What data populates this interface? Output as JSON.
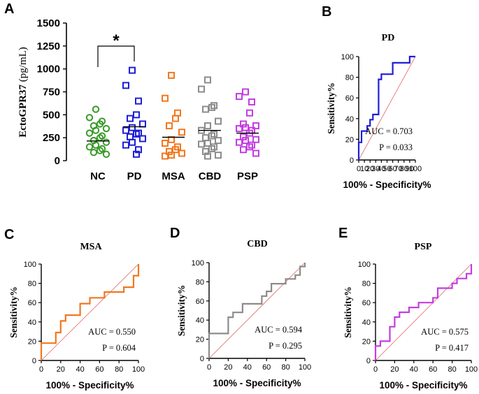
{
  "figure": {
    "panel_labels": [
      "A",
      "B",
      "C",
      "D",
      "E"
    ]
  },
  "chart_data": [
    {
      "panel": "A",
      "type": "scatter",
      "ylabel": "EctoGPR37 (pg/mL)",
      "ylim": [
        0,
        1500
      ],
      "yticks": [
        0,
        250,
        500,
        750,
        1000,
        1250,
        1500
      ],
      "categories": [
        "NC",
        "PD",
        "MSA",
        "CBD",
        "PSP"
      ],
      "colors": [
        "#3a9a2a",
        "#1f1fd6",
        "#f07820",
        "#8c8c8c",
        "#c23ee0"
      ],
      "markers": [
        "circle",
        "square",
        "square",
        "square",
        "square"
      ],
      "means": [
        215,
        370,
        255,
        330,
        300
      ],
      "significance": {
        "from": "NC",
        "to": "PD",
        "label": "*"
      },
      "series": [
        {
          "name": "NC",
          "values": [
            560,
            470,
            430,
            400,
            380,
            350,
            330,
            300,
            270,
            250,
            220,
            200,
            170,
            150,
            130,
            110,
            90,
            70
          ]
        },
        {
          "name": "PD",
          "values": [
            985,
            820,
            650,
            500,
            460,
            400,
            360,
            330,
            300,
            290,
            260,
            240,
            200,
            170,
            120,
            70
          ]
        },
        {
          "name": "MSA",
          "values": [
            930,
            680,
            520,
            460,
            380,
            310,
            230,
            190,
            150,
            120,
            100,
            80,
            60,
            50
          ]
        },
        {
          "name": "CBD",
          "values": [
            880,
            780,
            600,
            580,
            560,
            430,
            380,
            330,
            290,
            270,
            250,
            220,
            190,
            180,
            150,
            130,
            100,
            60,
            50
          ]
        },
        {
          "name": "PSP",
          "values": [
            750,
            700,
            640,
            520,
            400,
            380,
            360,
            350,
            330,
            300,
            260,
            230,
            220,
            200,
            170,
            150,
            120,
            80
          ]
        }
      ]
    },
    {
      "panel": "B",
      "type": "line",
      "title": "PD",
      "color": "#1f1fd6",
      "xlabel": "100% - Specificity%",
      "ylabel": "Sensitivity%",
      "xlim": [
        0,
        100
      ],
      "ylim": [
        0,
        100
      ],
      "xticks": [
        0,
        10,
        20,
        30,
        40,
        50,
        60,
        70,
        80,
        90,
        100
      ],
      "yticks": [
        0,
        20,
        40,
        60,
        80,
        100
      ],
      "auc": "AUC = 0.703",
      "p": "P = 0.033",
      "x": [
        0,
        0,
        0,
        5,
        5,
        15,
        15,
        20,
        20,
        25,
        25,
        35,
        35,
        40,
        40,
        60,
        60,
        90,
        90,
        100
      ],
      "y": [
        0,
        5,
        17,
        17,
        28,
        28,
        33,
        33,
        39,
        39,
        44,
        44,
        78,
        78,
        83,
        83,
        94,
        94,
        100,
        100
      ]
    },
    {
      "panel": "C",
      "type": "line",
      "title": "MSA",
      "color": "#f07820",
      "xlabel": "100% - Specificity%",
      "ylabel": "Sensitivity%",
      "xlim": [
        0,
        100
      ],
      "ylim": [
        0,
        100
      ],
      "xticks": [
        0,
        20,
        40,
        60,
        80,
        100
      ],
      "yticks": [
        0,
        20,
        40,
        60,
        80,
        100
      ],
      "auc": "AUC = 0.550",
      "p": "P = 0.604",
      "x": [
        0,
        0,
        15,
        15,
        20,
        20,
        25,
        25,
        40,
        40,
        50,
        50,
        65,
        65,
        85,
        85,
        95,
        95,
        100,
        100
      ],
      "y": [
        0,
        18,
        18,
        29,
        29,
        41,
        41,
        47,
        47,
        59,
        59,
        65,
        65,
        71,
        71,
        76,
        76,
        88,
        88,
        100
      ]
    },
    {
      "panel": "D",
      "type": "line",
      "title": "CBD",
      "color": "#8c8c8c",
      "xlabel": "100% - Specificity%",
      "ylabel": "Sensitivity%",
      "xlim": [
        0,
        100
      ],
      "ylim": [
        0,
        100
      ],
      "xticks": [
        0,
        20,
        40,
        60,
        80,
        100
      ],
      "yticks": [
        0,
        20,
        40,
        60,
        80,
        100
      ],
      "auc": "AUC = 0.594",
      "p": "P = 0.295",
      "x": [
        0,
        0,
        20,
        20,
        25,
        25,
        35,
        35,
        55,
        55,
        60,
        60,
        65,
        65,
        80,
        80,
        90,
        90,
        95,
        95,
        100,
        100
      ],
      "y": [
        0,
        26,
        26,
        43,
        43,
        48,
        48,
        57,
        57,
        65,
        65,
        70,
        70,
        78,
        78,
        83,
        83,
        87,
        87,
        96,
        96,
        100
      ]
    },
    {
      "panel": "E",
      "type": "line",
      "title": "PSP",
      "color": "#c23ee0",
      "xlabel": "100% - Specificity%",
      "ylabel": "Sensitivity%",
      "xlim": [
        0,
        100
      ],
      "ylim": [
        0,
        100
      ],
      "xticks": [
        0,
        20,
        40,
        60,
        80,
        100
      ],
      "yticks": [
        0,
        20,
        40,
        60,
        80,
        100
      ],
      "auc": "AUC = 0.575",
      "p": "P = 0.417",
      "x": [
        0,
        0,
        5,
        5,
        15,
        15,
        20,
        20,
        25,
        25,
        35,
        35,
        45,
        45,
        60,
        60,
        65,
        65,
        80,
        80,
        85,
        85,
        95,
        95,
        100,
        100
      ],
      "y": [
        0,
        15,
        15,
        20,
        20,
        35,
        35,
        45,
        45,
        50,
        50,
        55,
        55,
        60,
        60,
        65,
        65,
        75,
        75,
        80,
        80,
        85,
        85,
        90,
        90,
        100
      ]
    }
  ]
}
